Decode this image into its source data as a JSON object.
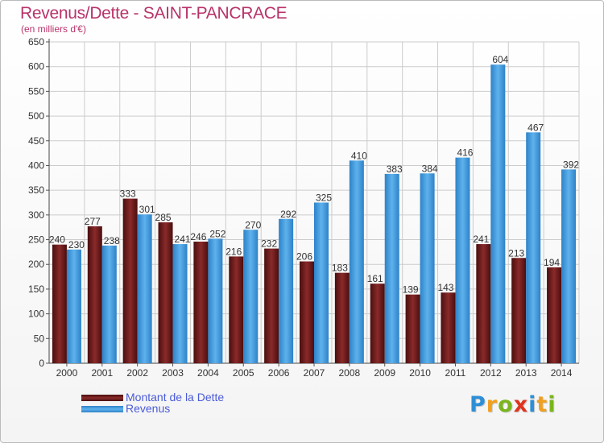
{
  "title": "Revenus/Dette - SAINT-PANCRACE",
  "unit_label": "(en milliers d'€)",
  "logo": {
    "text": "Proxiti",
    "letters": [
      {
        "ch": "P",
        "color": "#2e8fd6"
      },
      {
        "ch": "r",
        "color": "#f0a020"
      },
      {
        "ch": "o",
        "color": "#7ab51d"
      },
      {
        "ch": "x",
        "color": "#e0331f"
      },
      {
        "ch": "i",
        "color": "#2e8fd6"
      },
      {
        "ch": "t",
        "color": "#f0a020"
      },
      {
        "ch": "i",
        "color": "#7ab51d"
      }
    ]
  },
  "colors": {
    "dette": "#6e1c1c",
    "revenus": "#3a95d8",
    "grid": "#cccccc"
  },
  "chart_data": {
    "type": "bar",
    "title": "Revenus/Dette - SAINT-PANCRACE",
    "ylabel": "(en milliers d'€)",
    "xlabel": "",
    "ylim": [
      0,
      650
    ],
    "yticks": [
      0,
      50,
      100,
      150,
      200,
      250,
      300,
      350,
      400,
      450,
      500,
      550,
      600,
      650
    ],
    "grid": true,
    "legend": "bottom-left",
    "categories": [
      "2000",
      "2001",
      "2002",
      "2003",
      "2004",
      "2005",
      "2006",
      "2007",
      "2008",
      "2009",
      "2010",
      "2011",
      "2012",
      "2013",
      "2014"
    ],
    "series": [
      {
        "name": "Montant de la Dette",
        "values": [
          240,
          277,
          333,
          285,
          246,
          216,
          232,
          206,
          183,
          161,
          139,
          143,
          241,
          213,
          194
        ]
      },
      {
        "name": "Revenus",
        "values": [
          230,
          238,
          301,
          241,
          252,
          270,
          292,
          325,
          410,
          383,
          384,
          416,
          604,
          467,
          392
        ]
      }
    ]
  }
}
